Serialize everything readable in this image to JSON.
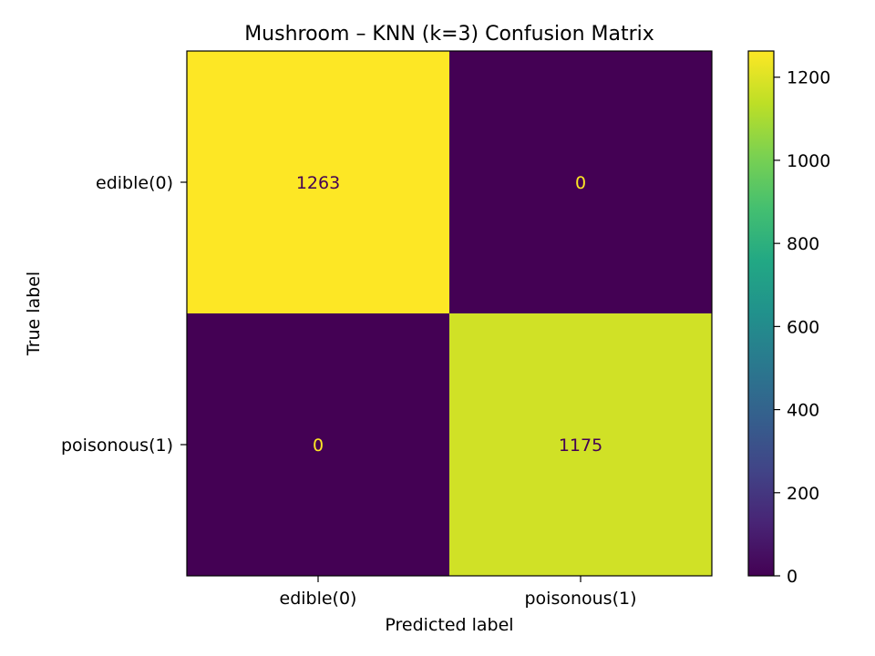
{
  "chart_data": {
    "type": "heatmap",
    "title": "Mushroom – KNN (k=3) Confusion Matrix",
    "xlabel": "Predicted label",
    "ylabel": "True label",
    "x_categories": [
      "edible(0)",
      "poisonous(1)"
    ],
    "y_categories": [
      "edible(0)",
      "poisonous(1)"
    ],
    "matrix": [
      [
        1263,
        0
      ],
      [
        0,
        1175
      ]
    ],
    "colormap": "viridis",
    "colorbar": {
      "range": [
        0,
        1263
      ],
      "ticks": [
        0,
        200,
        400,
        600,
        800,
        1000,
        1200
      ]
    },
    "colors": {
      "dark_text": "#440154",
      "light_text": "#fde725"
    }
  }
}
